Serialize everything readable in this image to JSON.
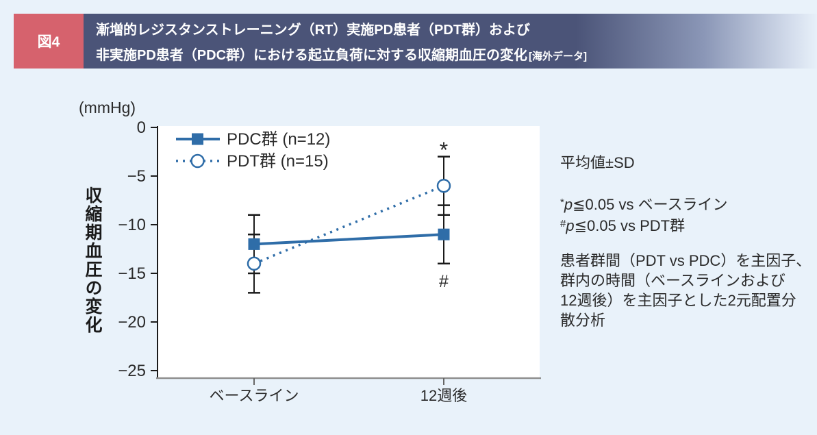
{
  "page": {
    "background": "#e9f2fa"
  },
  "header": {
    "badge": "図4",
    "badge_color": "#d6626d",
    "band_color": "#4b5478",
    "title_line1": "漸増的レジスタンストレーニング（RT）実施PD患者（PDT群）および",
    "title_line2": "非実施PD患者（PDC群）における起立負荷に対する収縮期血圧の変化",
    "title_line2_suffix": "[海外データ]"
  },
  "chart_data": {
    "type": "line",
    "unit_label": "(mmHg)",
    "ylabel": "収縮期血圧の変化",
    "categories": [
      "ベースライン",
      "12週後"
    ],
    "series": [
      {
        "name": "PDC群 (n=12)",
        "values": [
          -12,
          -11
        ],
        "sd": [
          3,
          3
        ],
        "marker": "filled-square",
        "line_style": "solid"
      },
      {
        "name": "PDT群 (n=15)",
        "values": [
          -14,
          -6
        ],
        "sd": [
          3,
          3
        ],
        "marker": "open-circle",
        "line_style": "dashed"
      }
    ],
    "ylim": [
      -25,
      0
    ],
    "yticks": [
      0,
      -5,
      -10,
      -15,
      -20,
      -25
    ],
    "ytick_labels": [
      "0",
      "−5",
      "−10",
      "−15",
      "−20",
      "−25"
    ],
    "line_color": "#2f6da8",
    "error_bars": "±SD",
    "grid": false,
    "legend": {
      "position": "top-left-inside"
    },
    "annotations": [
      {
        "text": "*",
        "at": "PDT群 12週後",
        "position": "above"
      },
      {
        "text": "#",
        "at": "PDC群 12週後",
        "position": "below"
      }
    ]
  },
  "notes": {
    "mean_sd": "平均値±SD",
    "footnotes": [
      {
        "marker": "*",
        "p": "p",
        "text": "≦0.05 vs ベースライン"
      },
      {
        "marker": "#",
        "p": "p",
        "text": "≦0.05 vs PDT群"
      }
    ],
    "analysis_lines": [
      "患者群間（PDT vs PDC）を主因子、",
      "群内の時間（ベースラインおよび",
      "12週後）を主因子とした2元配置分",
      "散分析"
    ]
  }
}
